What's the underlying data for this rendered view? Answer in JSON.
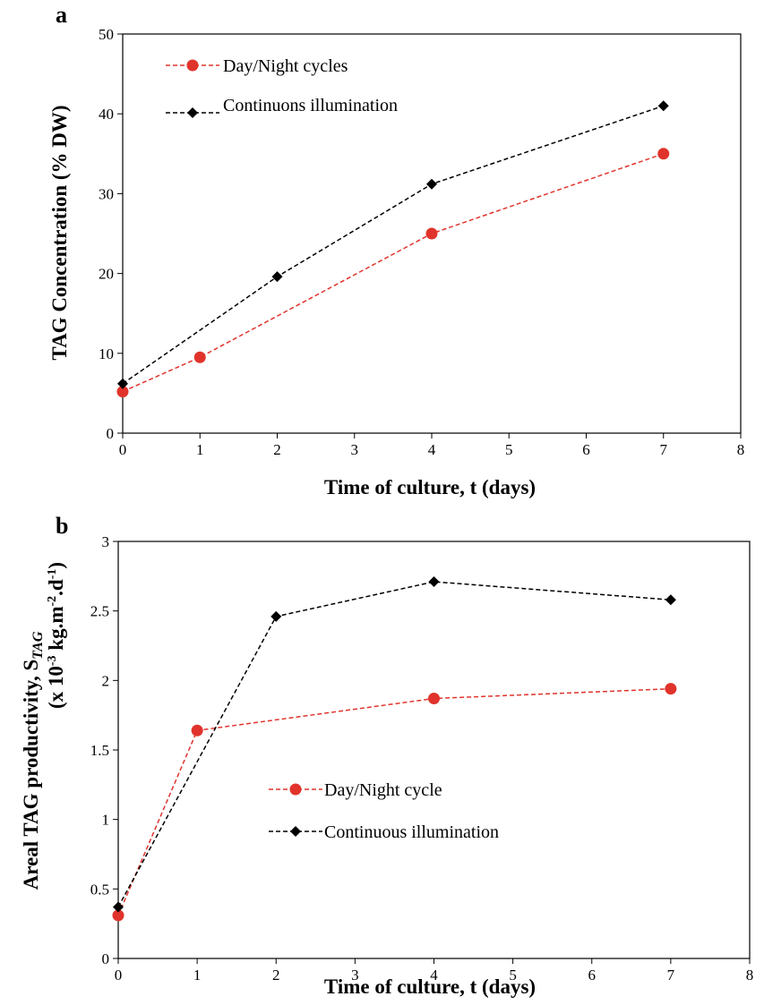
{
  "chart_data": [
    {
      "type": "line",
      "panel_label": "a",
      "xlabel": "Time of culture, t (days)",
      "ylabel": "TAG Concentration (% DW)",
      "xlim": [
        0,
        8
      ],
      "ylim": [
        0,
        50
      ],
      "xticks": [
        "0",
        "1",
        "2",
        "3",
        "4",
        "5",
        "6",
        "7",
        "8"
      ],
      "yticks": [
        "0",
        "10",
        "20",
        "30",
        "40",
        "50"
      ],
      "grid": false,
      "legend_position": "top-left",
      "series": [
        {
          "name": "Day/Night cycles",
          "color": "#e0332b",
          "marker": "circle",
          "x": [
            0,
            1,
            4,
            7
          ],
          "y": [
            5.2,
            9.5,
            25,
            35
          ]
        },
        {
          "name": "Continuons illumination",
          "color": "#000000",
          "marker": "diamond",
          "x": [
            0,
            2,
            4,
            7
          ],
          "y": [
            6.2,
            19.6,
            31.2,
            41
          ]
        }
      ]
    },
    {
      "type": "line",
      "panel_label": "b",
      "xlabel": "Time of culture, t (days)",
      "ylabel_line1": "Areal TAG productivity, S",
      "ylabel_sub": "TAG",
      "ylabel_line2_prefix": "(x 10",
      "ylabel_line2_sup1": "-3",
      "ylabel_line2_mid": " kg.m",
      "ylabel_line2_sup2": "-2",
      "ylabel_line2_mid2": ".d",
      "ylabel_line2_sup3": "-1",
      "ylabel_line2_suffix": ")",
      "xlim": [
        0,
        8
      ],
      "ylim": [
        0,
        3
      ],
      "xticks": [
        "0",
        "1",
        "2",
        "3",
        "4",
        "5",
        "6",
        "7",
        "8"
      ],
      "yticks": [
        "0",
        "0.5",
        "1",
        "1.5",
        "2",
        "2.5",
        "3"
      ],
      "grid": false,
      "legend_position": "center",
      "series": [
        {
          "name": "Day/Night cycle",
          "color": "#e0332b",
          "marker": "circle",
          "x": [
            0,
            1,
            4,
            7
          ],
          "y": [
            0.31,
            1.64,
            1.87,
            1.94
          ]
        },
        {
          "name": "Continuous illumination",
          "color": "#000000",
          "marker": "diamond",
          "x": [
            0,
            2,
            4,
            7
          ],
          "y": [
            0.37,
            2.46,
            2.71,
            2.58
          ]
        }
      ]
    }
  ]
}
